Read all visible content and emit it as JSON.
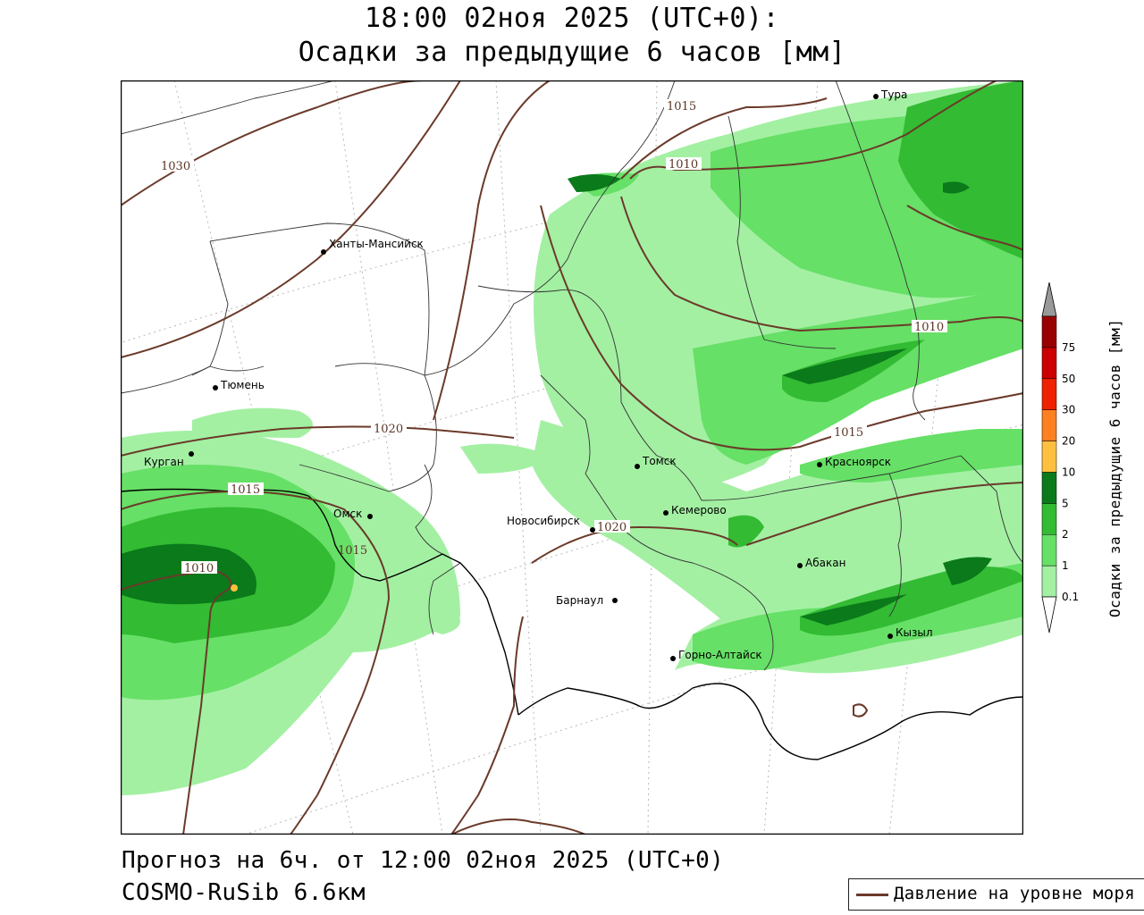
{
  "header": {
    "title_line1": "18:00 02ноя 2025 (UTC+0):",
    "title_line2": "Осадки за предыдущие 6 часов [мм]"
  },
  "footer": {
    "forecast": "Прогноз на 6ч. от 12:00 02ноя 2025 (UTC+0)",
    "model": "COSMO-RuSib 6.6км"
  },
  "legend": {
    "pressure_label": "Давление на уровне моря",
    "pressure_color": "#6b3a2a"
  },
  "colorbar": {
    "title": "Осадки за предыдущие 6 часов [мм]",
    "levels": [
      "0.1",
      "1",
      "2",
      "5",
      "10",
      "20",
      "30",
      "50",
      "75"
    ],
    "colors": [
      "#ffffff",
      "#a3f0a3",
      "#66e066",
      "#33bb33",
      "#0a7a1a",
      "#ffc040",
      "#ff8020",
      "#ee2200",
      "#cc0000",
      "#990000",
      "#999999"
    ]
  },
  "map": {
    "cities": [
      {
        "name": "Тура"
      },
      {
        "name": "Ханты-Мансийск"
      },
      {
        "name": "Тюмень"
      },
      {
        "name": "Курган"
      },
      {
        "name": "Омск"
      },
      {
        "name": "Томск"
      },
      {
        "name": "Красноярск"
      },
      {
        "name": "Новосибирск"
      },
      {
        "name": "Кемерово"
      },
      {
        "name": "Абакан"
      },
      {
        "name": "Барнаул"
      },
      {
        "name": "Кызыл"
      },
      {
        "name": "Горно-Алтайск"
      }
    ],
    "isobar_labels": [
      "1015",
      "1010",
      "1030",
      "1020",
      "1015",
      "1010",
      "1015",
      "1020",
      "1010",
      "1015"
    ]
  }
}
